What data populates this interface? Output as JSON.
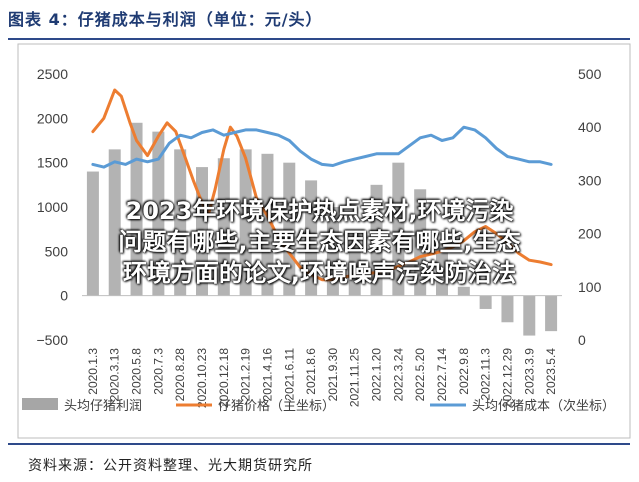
{
  "header": {
    "title": "图表 4：仔猪成本与利润（单位：元/头）"
  },
  "footer": {
    "source": "资料来源：公开资料整理、光大期货研究所"
  },
  "overlay": {
    "lines": [
      "2023年环境保护热点素材,环境污染",
      "问题有哪些,主要生态因素有哪些,生态",
      "环境方面的论文,环境噪声污染防治法"
    ]
  },
  "colors": {
    "bars": "#a6a6a6",
    "price": "#ed7d31",
    "cost": "#5b9bd5",
    "axis": "#7f7f7f"
  },
  "chart_data": {
    "type": "bar+line",
    "left_axis": {
      "min": -500,
      "max": 2500,
      "ticks": [
        2500,
        2000,
        1500,
        1000,
        500,
        0,
        -500
      ]
    },
    "right_axis": {
      "min": 0,
      "max": 500,
      "ticks": [
        500,
        400,
        300,
        200,
        100,
        0
      ]
    },
    "x_tick_labels": [
      "2020.1.3",
      "2020.3.13",
      "2020.5.8",
      "2020.7.3",
      "2020.8.28",
      "2020.10.23",
      "2020.12.18",
      "2021.2.19",
      "2021.4.16",
      "2021.6.11",
      "2021.8.6",
      "2021.9.30",
      "2021.11.25",
      "2022.1.20",
      "2022.3.24",
      "2022.5.20",
      "2022.7.14",
      "2022.9.8",
      "2022.11.3",
      "2022.12.29",
      "2023.3.9",
      "2023.5.4"
    ],
    "legend": [
      {
        "key": "bars",
        "label": "头均仔猪利润"
      },
      {
        "key": "price",
        "label": "仔猪价格（主坐标）"
      },
      {
        "key": "cost",
        "label": "头均仔猪成本（次坐标）"
      }
    ],
    "series": [
      {
        "name": "头均仔猪利润",
        "axis": "left",
        "kind": "bar",
        "points": [
          [
            0,
            1400
          ],
          [
            1,
            1650
          ],
          [
            2,
            1950
          ],
          [
            3,
            1850
          ],
          [
            4,
            1650
          ],
          [
            5,
            1450
          ],
          [
            6,
            1550
          ],
          [
            7,
            1650
          ],
          [
            8,
            1600
          ],
          [
            9,
            1500
          ],
          [
            10,
            1300
          ],
          [
            11,
            1000
          ],
          [
            12,
            700
          ],
          [
            13,
            1250
          ],
          [
            14,
            1500
          ],
          [
            15,
            1200
          ],
          [
            16,
            600
          ],
          [
            17,
            100
          ],
          [
            18,
            -150
          ],
          [
            19,
            -300
          ],
          [
            20,
            -450
          ],
          [
            21,
            -400
          ]
        ]
      },
      {
        "name": "仔猪价格",
        "axis": "left",
        "kind": "line",
        "points": [
          [
            0,
            1850
          ],
          [
            0.5,
            2000
          ],
          [
            1,
            2320
          ],
          [
            1.3,
            2250
          ],
          [
            1.7,
            1950
          ],
          [
            2,
            1750
          ],
          [
            2.5,
            1580
          ],
          [
            3,
            1800
          ],
          [
            3.4,
            1950
          ],
          [
            3.8,
            1850
          ],
          [
            4.2,
            1580
          ],
          [
            4.6,
            1300
          ],
          [
            5,
            1050
          ],
          [
            5.3,
            920
          ],
          [
            5.6,
            1200
          ],
          [
            6,
            1650
          ],
          [
            6.3,
            1900
          ],
          [
            6.6,
            1800
          ],
          [
            7,
            1550
          ],
          [
            7.5,
            1100
          ],
          [
            8,
            900
          ],
          [
            8.5,
            650
          ],
          [
            9,
            480
          ],
          [
            9.5,
            320
          ],
          [
            10,
            240
          ],
          [
            10.5,
            180
          ],
          [
            11,
            180
          ],
          [
            11.5,
            210
          ],
          [
            12,
            230
          ],
          [
            12.5,
            250
          ],
          [
            13,
            260
          ],
          [
            13.5,
            280
          ],
          [
            14,
            330
          ],
          [
            14.5,
            380
          ],
          [
            15,
            440
          ],
          [
            15.5,
            470
          ],
          [
            16,
            500
          ],
          [
            16.5,
            550
          ],
          [
            17,
            620
          ],
          [
            17.5,
            720
          ],
          [
            18,
            780
          ],
          [
            18.5,
            700
          ],
          [
            19,
            600
          ],
          [
            19.5,
            480
          ],
          [
            20,
            400
          ],
          [
            20.5,
            380
          ],
          [
            21,
            350
          ]
        ]
      },
      {
        "name": "头均仔猪成本",
        "axis": "right",
        "kind": "line",
        "points": [
          [
            0,
            330
          ],
          [
            0.5,
            325
          ],
          [
            1,
            335
          ],
          [
            1.5,
            330
          ],
          [
            2,
            340
          ],
          [
            2.5,
            335
          ],
          [
            3,
            340
          ],
          [
            3.5,
            370
          ],
          [
            4,
            385
          ],
          [
            4.5,
            380
          ],
          [
            5,
            390
          ],
          [
            5.5,
            395
          ],
          [
            6,
            385
          ],
          [
            6.5,
            390
          ],
          [
            7,
            395
          ],
          [
            7.5,
            395
          ],
          [
            8,
            390
          ],
          [
            8.5,
            385
          ],
          [
            9,
            375
          ],
          [
            9.5,
            355
          ],
          [
            10,
            340
          ],
          [
            10.5,
            330
          ],
          [
            11,
            328
          ],
          [
            11.5,
            335
          ],
          [
            12,
            340
          ],
          [
            12.5,
            345
          ],
          [
            13,
            350
          ],
          [
            13.5,
            350
          ],
          [
            14,
            350
          ],
          [
            14.5,
            365
          ],
          [
            15,
            380
          ],
          [
            15.5,
            385
          ],
          [
            16,
            375
          ],
          [
            16.5,
            380
          ],
          [
            17,
            400
          ],
          [
            17.5,
            395
          ],
          [
            18,
            380
          ],
          [
            18.5,
            360
          ],
          [
            19,
            345
          ],
          [
            19.5,
            340
          ],
          [
            20,
            335
          ],
          [
            20.5,
            335
          ],
          [
            21,
            330
          ]
        ]
      }
    ]
  }
}
